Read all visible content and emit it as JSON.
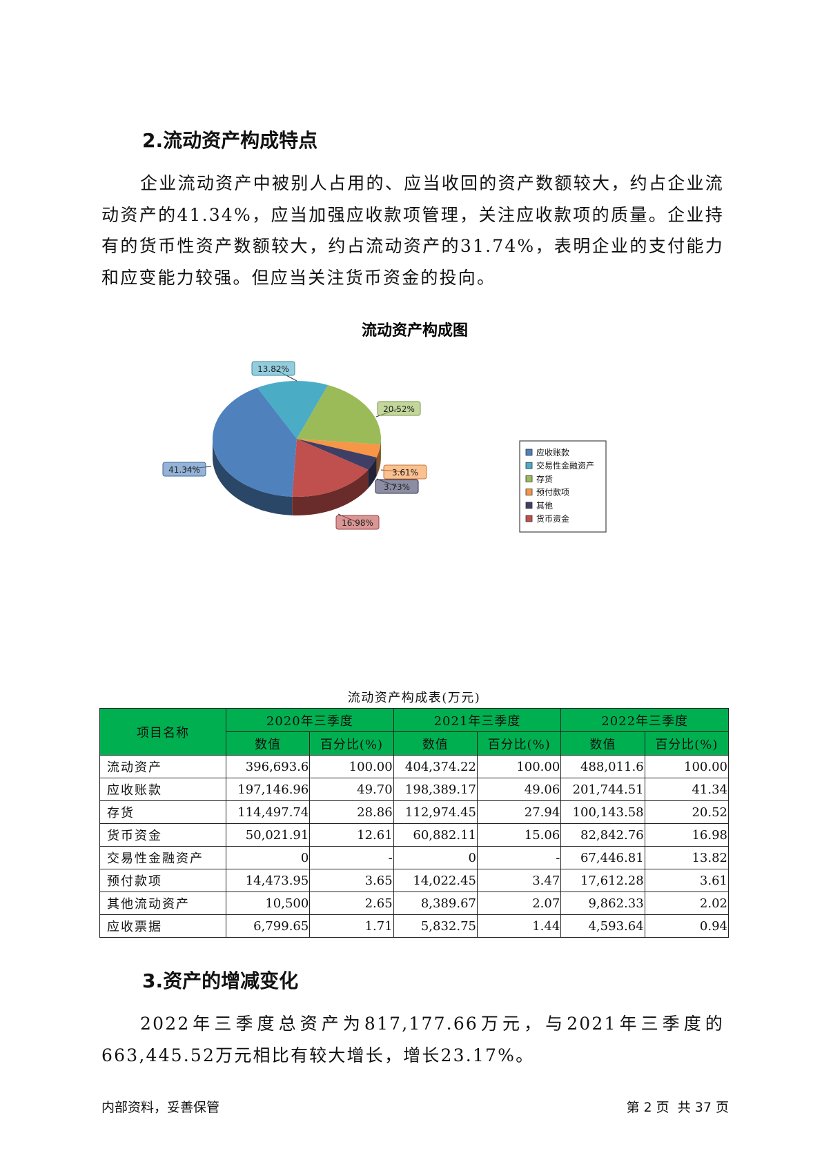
{
  "section2": {
    "heading": "2.流动资产构成特点",
    "paragraph": "企业流动资产中被别人占用的、应当收回的资产数额较大，约占企业流动资产的41.34%，应当加强应收款项管理，关注应收款项的质量。企业持有的货币性资产数额较大，约占流动资产的31.74%，表明企业的支付能力和应变能力较强。但应当关注货币资金的投向。"
  },
  "chart_data": {
    "type": "pie",
    "title": "流动资产构成图",
    "legend_position": "right",
    "slices": [
      {
        "name": "应收账款",
        "value": 41.34,
        "label": "41.34%",
        "color": "#4f81bd"
      },
      {
        "name": "交易性金融资产",
        "value": 13.82,
        "label": "13.82%",
        "color": "#4bacc6"
      },
      {
        "name": "存货",
        "value": 20.52,
        "label": "20.52%",
        "color": "#9bbb59"
      },
      {
        "name": "预付款项",
        "value": 3.61,
        "label": "3.61%",
        "color": "#f79646"
      },
      {
        "name": "其他",
        "value": 3.73,
        "label": "3.73%",
        "color": "#3f3f66"
      },
      {
        "name": "货币资金",
        "value": 16.98,
        "label": "16.98%",
        "color": "#c0504d"
      }
    ]
  },
  "table": {
    "title": "流动资产构成表(万元)",
    "name_header": "项目名称",
    "periods": [
      "2020年三季度",
      "2021年三季度",
      "2022年三季度"
    ],
    "sub_headers": [
      "数值",
      "百分比(%)"
    ],
    "rows": [
      {
        "name": "流动资产",
        "cells": [
          "396,693.6",
          "100.00",
          "404,374.22",
          "100.00",
          "488,011.6",
          "100.00"
        ]
      },
      {
        "name": "应收账款",
        "cells": [
          "197,146.96",
          "49.70",
          "198,389.17",
          "49.06",
          "201,744.51",
          "41.34"
        ]
      },
      {
        "name": "存货",
        "cells": [
          "114,497.74",
          "28.86",
          "112,974.45",
          "27.94",
          "100,143.58",
          "20.52"
        ]
      },
      {
        "name": "货币资金",
        "cells": [
          "50,021.91",
          "12.61",
          "60,882.11",
          "15.06",
          "82,842.76",
          "16.98"
        ]
      },
      {
        "name": "交易性金融资产",
        "cells": [
          "0",
          "-",
          "0",
          "-",
          "67,446.81",
          "13.82"
        ]
      },
      {
        "name": "预付款项",
        "cells": [
          "14,473.95",
          "3.65",
          "14,022.45",
          "3.47",
          "17,612.28",
          "3.61"
        ]
      },
      {
        "name": "其他流动资产",
        "cells": [
          "10,500",
          "2.65",
          "8,389.67",
          "2.07",
          "9,862.33",
          "2.02"
        ]
      },
      {
        "name": "应收票据",
        "cells": [
          "6,799.65",
          "1.71",
          "5,832.75",
          "1.44",
          "4,593.64",
          "0.94"
        ]
      }
    ]
  },
  "section3": {
    "heading": "3.资产的增减变化",
    "paragraph": "2022年三季度总资产为817,177.66万元，与2021年三季度的663,445.52万元相比有较大增长，增长23.17%。"
  },
  "footer": {
    "left": "内部资料，妥善保管",
    "page_label": "第 2 页  共 37 页"
  }
}
